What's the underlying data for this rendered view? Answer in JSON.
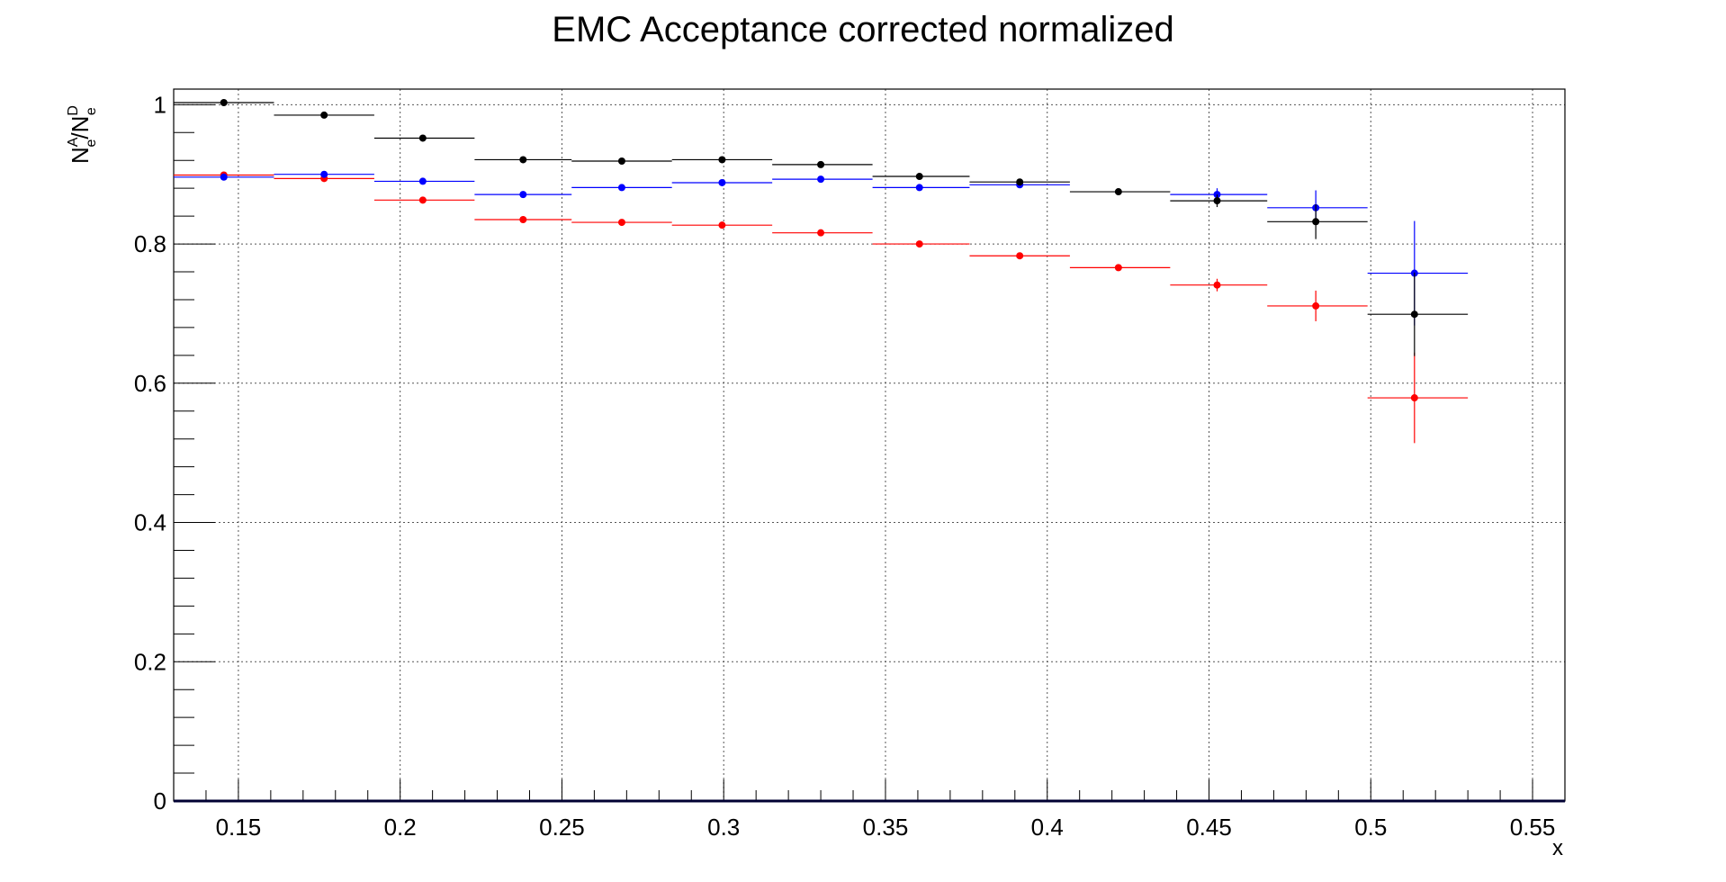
{
  "chart_data": {
    "type": "scatter",
    "title": "EMC Acceptance corrected normalized",
    "xlabel": "x",
    "ylabel": {
      "base": "N",
      "sup1": "A",
      "sub1": "e",
      "sep": "/",
      "base2": "N",
      "sup2": "D",
      "sub2": "e"
    },
    "xlim": [
      0.13,
      0.56
    ],
    "ylim": [
      0,
      1.0224
    ],
    "x_ticks": [
      "0.15",
      "0.2",
      "0.25",
      "0.3",
      "0.35",
      "0.4",
      "0.45",
      "0.5",
      "0.55"
    ],
    "x_tick_values": [
      0.15,
      0.2,
      0.25,
      0.3,
      0.35,
      0.4,
      0.45,
      0.5,
      0.55
    ],
    "y_ticks": [
      "0",
      "0.2",
      "0.4",
      "0.6",
      "0.8",
      "1"
    ],
    "y_tick_values": [
      0,
      0.2,
      0.4,
      0.6,
      0.8,
      1.0
    ],
    "grid": true,
    "series": [
      {
        "color": "#000000",
        "points": [
          {
            "x": 0.1455,
            "y": 1.003,
            "xlo": 0.13,
            "xhi": 0.161,
            "err": 0.002
          },
          {
            "x": 0.1765,
            "y": 0.985,
            "xlo": 0.161,
            "xhi": 0.192,
            "err": 0.002
          },
          {
            "x": 0.207,
            "y": 0.952,
            "xlo": 0.192,
            "xhi": 0.223,
            "err": 0.002
          },
          {
            "x": 0.238,
            "y": 0.921,
            "xlo": 0.223,
            "xhi": 0.253,
            "err": 0.002
          },
          {
            "x": 0.2685,
            "y": 0.919,
            "xlo": 0.253,
            "xhi": 0.284,
            "err": 0.002
          },
          {
            "x": 0.2995,
            "y": 0.921,
            "xlo": 0.284,
            "xhi": 0.315,
            "err": 0.002
          },
          {
            "x": 0.33,
            "y": 0.914,
            "xlo": 0.315,
            "xhi": 0.346,
            "err": 0.002
          },
          {
            "x": 0.3605,
            "y": 0.897,
            "xlo": 0.346,
            "xhi": 0.376,
            "err": 0.002
          },
          {
            "x": 0.3915,
            "y": 0.889,
            "xlo": 0.376,
            "xhi": 0.407,
            "err": 0.003
          },
          {
            "x": 0.422,
            "y": 0.875,
            "xlo": 0.407,
            "xhi": 0.438,
            "err": 0.003
          },
          {
            "x": 0.4525,
            "y": 0.862,
            "xlo": 0.438,
            "xhi": 0.468,
            "err": 0.009
          },
          {
            "x": 0.483,
            "y": 0.832,
            "xlo": 0.468,
            "xhi": 0.499,
            "err": 0.025
          },
          {
            "x": 0.5135,
            "y": 0.699,
            "xlo": 0.499,
            "xhi": 0.53,
            "err": 0.06
          }
        ]
      },
      {
        "color": "#0000ff",
        "points": [
          {
            "x": 0.1455,
            "y": 0.896,
            "xlo": 0.13,
            "xhi": 0.161,
            "err": 0.002
          },
          {
            "x": 0.1765,
            "y": 0.9,
            "xlo": 0.161,
            "xhi": 0.192,
            "err": 0.002
          },
          {
            "x": 0.207,
            "y": 0.89,
            "xlo": 0.192,
            "xhi": 0.223,
            "err": 0.002
          },
          {
            "x": 0.238,
            "y": 0.871,
            "xlo": 0.223,
            "xhi": 0.253,
            "err": 0.002
          },
          {
            "x": 0.2685,
            "y": 0.881,
            "xlo": 0.253,
            "xhi": 0.284,
            "err": 0.002
          },
          {
            "x": 0.2995,
            "y": 0.888,
            "xlo": 0.284,
            "xhi": 0.315,
            "err": 0.002
          },
          {
            "x": 0.33,
            "y": 0.893,
            "xlo": 0.315,
            "xhi": 0.346,
            "err": 0.002
          },
          {
            "x": 0.3605,
            "y": 0.881,
            "xlo": 0.346,
            "xhi": 0.376,
            "err": 0.002
          },
          {
            "x": 0.3915,
            "y": 0.885,
            "xlo": 0.376,
            "xhi": 0.407,
            "err": 0.003
          },
          {
            "x": 0.4525,
            "y": 0.871,
            "xlo": 0.438,
            "xhi": 0.468,
            "err": 0.009
          },
          {
            "x": 0.483,
            "y": 0.852,
            "xlo": 0.468,
            "xhi": 0.499,
            "err": 0.025
          },
          {
            "x": 0.5135,
            "y": 0.758,
            "xlo": 0.499,
            "xhi": 0.53,
            "err": 0.075
          }
        ]
      },
      {
        "color": "#ff0000",
        "points": [
          {
            "x": 0.1455,
            "y": 0.899,
            "xlo": 0.13,
            "xhi": 0.161,
            "err": 0.002
          },
          {
            "x": 0.1765,
            "y": 0.894,
            "xlo": 0.161,
            "xhi": 0.192,
            "err": 0.002
          },
          {
            "x": 0.207,
            "y": 0.863,
            "xlo": 0.192,
            "xhi": 0.223,
            "err": 0.002
          },
          {
            "x": 0.238,
            "y": 0.835,
            "xlo": 0.223,
            "xhi": 0.253,
            "err": 0.002
          },
          {
            "x": 0.2685,
            "y": 0.831,
            "xlo": 0.253,
            "xhi": 0.284,
            "err": 0.002
          },
          {
            "x": 0.2995,
            "y": 0.827,
            "xlo": 0.284,
            "xhi": 0.315,
            "err": 0.002
          },
          {
            "x": 0.33,
            "y": 0.816,
            "xlo": 0.315,
            "xhi": 0.346,
            "err": 0.002
          },
          {
            "x": 0.3605,
            "y": 0.8,
            "xlo": 0.346,
            "xhi": 0.376,
            "err": 0.002
          },
          {
            "x": 0.3915,
            "y": 0.783,
            "xlo": 0.376,
            "xhi": 0.407,
            "err": 0.003
          },
          {
            "x": 0.422,
            "y": 0.766,
            "xlo": 0.407,
            "xhi": 0.438,
            "err": 0.003
          },
          {
            "x": 0.4525,
            "y": 0.741,
            "xlo": 0.438,
            "xhi": 0.468,
            "err": 0.009
          },
          {
            "x": 0.483,
            "y": 0.711,
            "xlo": 0.468,
            "xhi": 0.499,
            "err": 0.022
          },
          {
            "x": 0.5135,
            "y": 0.579,
            "xlo": 0.499,
            "xhi": 0.53,
            "err": 0.065
          }
        ]
      }
    ]
  }
}
